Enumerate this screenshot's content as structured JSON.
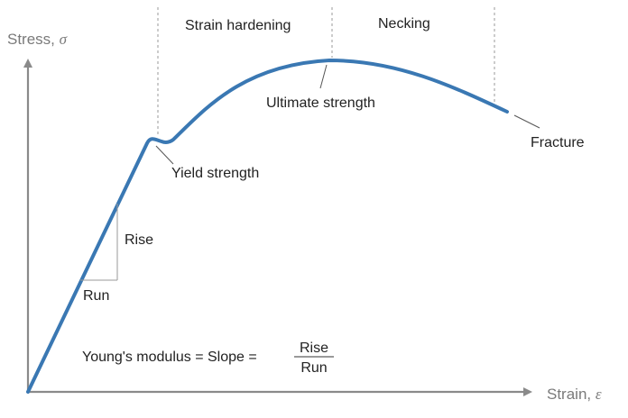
{
  "axes": {
    "y_label": "Stress, ",
    "y_symbol": "σ",
    "x_label": "Strain, ",
    "x_symbol": "ε"
  },
  "regions": {
    "strain_hardening": "Strain hardening",
    "necking": "Necking"
  },
  "points": {
    "yield_strength": "Yield strength",
    "ultimate_strength": "Ultimate strength",
    "fracture": "Fracture"
  },
  "slope_triangle": {
    "rise": "Rise",
    "run": "Run"
  },
  "formula": {
    "lhs": "Young's modulus = Slope =",
    "numerator": "Rise",
    "denominator": "Run"
  },
  "colors": {
    "curve": "#3a78b3",
    "axis": "#8a8a8a",
    "guide": "#9a9a9a",
    "text": "#222222"
  }
}
